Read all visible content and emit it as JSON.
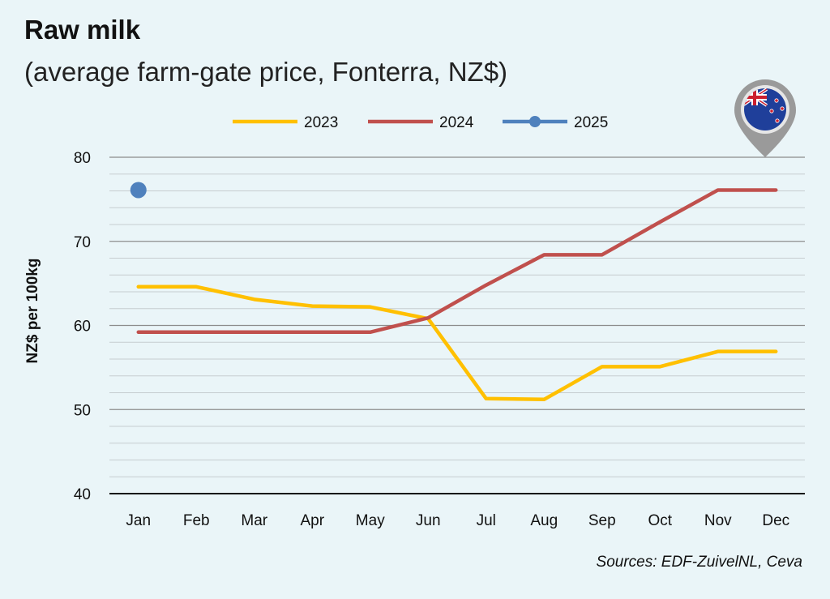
{
  "title": "Raw milk",
  "subtitle": "(average farm-gate price, Fonterra, NZ$)",
  "source": "Sources: EDF-ZuivelNL, Ceva",
  "badge_icon": "new-zealand-flag-pin-icon",
  "chart_data": {
    "type": "line",
    "title": "Raw milk",
    "subtitle": "(average farm-gate price, Fonterra, NZ$)",
    "ylabel": "NZ$ per 100kg",
    "xlabel": "",
    "categories": [
      "Jan",
      "Feb",
      "Mar",
      "Apr",
      "May",
      "Jun",
      "Jul",
      "Aug",
      "Sep",
      "Oct",
      "Nov",
      "Dec"
    ],
    "ylim": [
      40,
      80
    ],
    "yticks": [
      40,
      50,
      60,
      70,
      80
    ],
    "grid": true,
    "legend_position": "top",
    "series": [
      {
        "name": "2023",
        "color": "#ffc000",
        "values": [
          64.6,
          64.6,
          63.1,
          62.3,
          62.2,
          60.8,
          51.3,
          51.2,
          55.1,
          55.1,
          56.9,
          56.9
        ]
      },
      {
        "name": "2024",
        "color": "#c0504d",
        "values": [
          59.2,
          59.2,
          59.2,
          59.2,
          59.2,
          60.9,
          64.8,
          68.4,
          68.4,
          72.3,
          76.1,
          76.1
        ]
      },
      {
        "name": "2025",
        "color": "#4f81bd",
        "marker": "circle",
        "values": [
          76.1,
          null,
          null,
          null,
          null,
          null,
          null,
          null,
          null,
          null,
          null,
          null
        ]
      }
    ]
  }
}
